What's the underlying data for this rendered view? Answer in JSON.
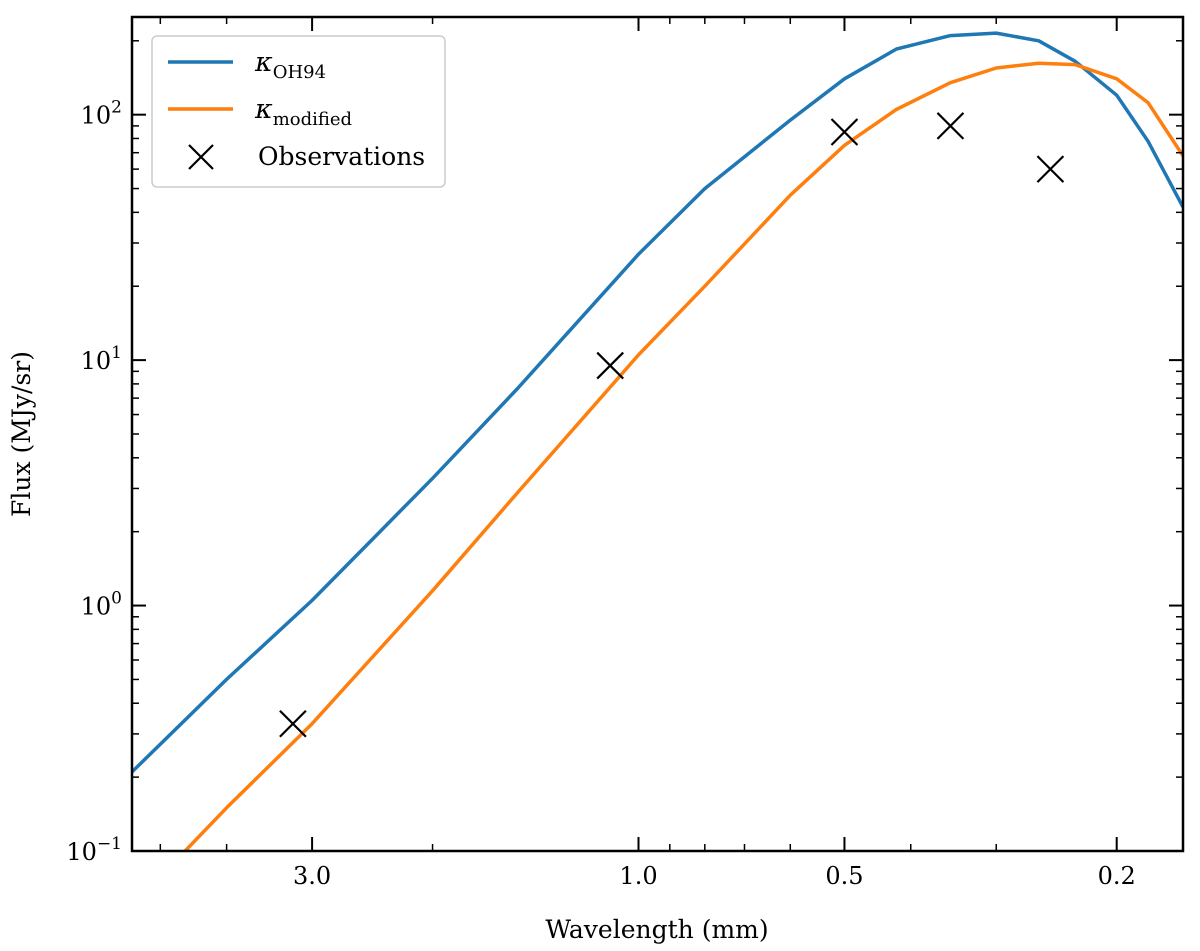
{
  "chart_data": {
    "type": "line",
    "xscale": "log",
    "yscale": "log",
    "x_inverted": true,
    "xlabel": "Wavelength (mm)",
    "ylabel": "Flux (MJy/sr)",
    "xlim": [
      5.5,
      0.16
    ],
    "ylim": [
      0.1,
      250
    ],
    "x_ticks": [
      {
        "value": 3.0,
        "label": "3.0"
      },
      {
        "value": 1.0,
        "label": "1.0"
      },
      {
        "value": 0.5,
        "label": "0.5"
      },
      {
        "value": 0.2,
        "label": "0.2"
      }
    ],
    "y_ticks": [
      {
        "value": 0.1,
        "base": "10",
        "exp": "−1"
      },
      {
        "value": 1,
        "base": "10",
        "exp": "0"
      },
      {
        "value": 10,
        "base": "10",
        "exp": "1"
      },
      {
        "value": 100,
        "base": "10",
        "exp": "2"
      }
    ],
    "series": [
      {
        "name": "κ_OH94",
        "legend_symbol": "κ",
        "legend_subscript": "OH94",
        "color": "#1f77b4",
        "x": [
          5.5,
          4.0,
          3.0,
          2.0,
          1.5,
          1.0,
          0.8,
          0.6,
          0.5,
          0.42,
          0.35,
          0.3,
          0.26,
          0.23,
          0.2,
          0.18,
          0.16
        ],
        "y": [
          0.21,
          0.5,
          1.05,
          3.3,
          7.7,
          27,
          50,
          95,
          140,
          185,
          210,
          215,
          200,
          165,
          120,
          78,
          42
        ]
      },
      {
        "name": "κ_modified",
        "legend_symbol": "κ",
        "legend_subscript": "modified",
        "color": "#ff7f0e",
        "x": [
          4.6,
          4.0,
          3.0,
          2.0,
          1.5,
          1.0,
          0.8,
          0.6,
          0.5,
          0.42,
          0.35,
          0.3,
          0.26,
          0.23,
          0.2,
          0.18,
          0.16
        ],
        "y": [
          0.1,
          0.15,
          0.33,
          1.15,
          2.9,
          10.5,
          20,
          47,
          75,
          105,
          135,
          155,
          162,
          160,
          140,
          112,
          68
        ]
      }
    ],
    "observations": {
      "name": "Observations",
      "marker": "x",
      "color": "#000000",
      "x": [
        3.2,
        1.1,
        0.5,
        0.35,
        0.25
      ],
      "y": [
        0.33,
        9.5,
        85,
        90,
        60
      ]
    },
    "legend_position": "top-left"
  }
}
